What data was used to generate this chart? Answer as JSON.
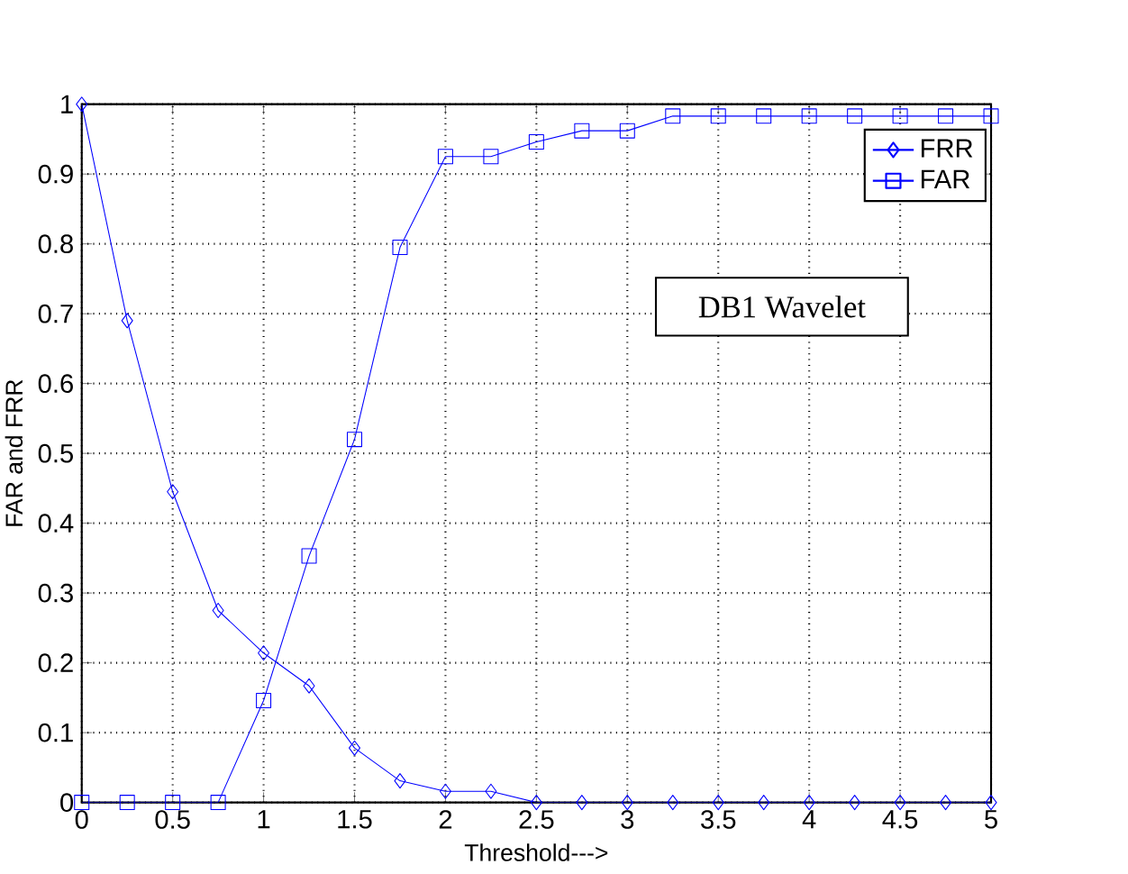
{
  "chart_data": {
    "type": "line",
    "xlabel": "Threshold--->",
    "ylabel": "FAR and FRR",
    "x": [
      0,
      0.25,
      0.5,
      0.75,
      1,
      1.25,
      1.5,
      1.75,
      2,
      2.25,
      2.5,
      2.75,
      3,
      3.25,
      3.5,
      3.75,
      4,
      4.25,
      4.5,
      4.75,
      5
    ],
    "series": [
      {
        "name": "FRR",
        "color": "#0000ff",
        "marker": "diamond",
        "values": [
          1.0,
          0.69,
          0.445,
          0.275,
          0.214,
          0.167,
          0.078,
          0.031,
          0.016,
          0.016,
          0,
          0,
          0,
          0,
          0,
          0,
          0,
          0,
          0,
          0,
          0
        ]
      },
      {
        "name": "FAR",
        "color": "#0000ff",
        "marker": "square",
        "values": [
          0,
          0,
          0,
          0,
          0.146,
          0.353,
          0.52,
          0.795,
          0.925,
          0.925,
          0.946,
          0.962,
          0.962,
          0.983,
          0.983,
          0.983,
          0.983,
          0.983,
          0.983,
          0.983,
          0.983
        ]
      }
    ],
    "annotations": [
      "DB1 Wavelet"
    ],
    "xlim": [
      0,
      5
    ],
    "ylim": [
      0,
      1
    ],
    "xticks": [
      0,
      0.5,
      1,
      1.5,
      2,
      2.5,
      3,
      3.5,
      4,
      4.5,
      5
    ],
    "yticks": [
      0,
      0.1,
      0.2,
      0.3,
      0.4,
      0.5,
      0.6,
      0.7,
      0.8,
      0.9,
      1
    ],
    "grid": true,
    "legend": "top right",
    "line_style": "solid"
  }
}
